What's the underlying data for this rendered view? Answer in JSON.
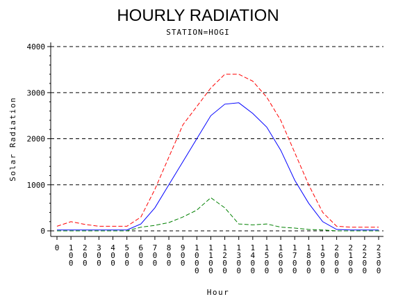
{
  "chart_data": {
    "type": "line",
    "title": "HOURLY RADIATION",
    "subtitle": "STATION=HOGI",
    "xlabel": "Hour",
    "ylabel": "Solar Radiation",
    "ylim": [
      0,
      4000
    ],
    "yticks": [
      0,
      1000,
      2000,
      3000,
      4000
    ],
    "ytick_labels": [
      "0",
      "1000",
      "2000",
      "3000",
      "4000"
    ],
    "grid": "horizontal-dashed",
    "x": [
      0,
      100,
      200,
      300,
      400,
      500,
      600,
      700,
      800,
      900,
      1000,
      1100,
      1200,
      1300,
      1400,
      1500,
      1600,
      1700,
      1800,
      1900,
      2000,
      2100,
      2200,
      2300
    ],
    "x_tick_labels": [
      "0",
      "100",
      "200",
      "300",
      "400",
      "500",
      "600",
      "700",
      "800",
      "900",
      "1000",
      "1100",
      "1200",
      "1300",
      "1400",
      "1500",
      "1600",
      "1700",
      "1800",
      "1900",
      "2000",
      "2100",
      "2200",
      "2300"
    ],
    "series": [
      {
        "color": "#ff0000",
        "style": "dashed",
        "values": [
          100,
          200,
          140,
          100,
          100,
          100,
          300,
          900,
          1600,
          2300,
          2700,
          3100,
          3400,
          3400,
          3250,
          2900,
          2400,
          1700,
          1000,
          400,
          100,
          80,
          80,
          80
        ]
      },
      {
        "color": "#0000ff",
        "style": "solid",
        "values": [
          20,
          20,
          20,
          20,
          20,
          20,
          150,
          500,
          1000,
          1500,
          2000,
          2500,
          2750,
          2780,
          2550,
          2250,
          1750,
          1100,
          600,
          200,
          30,
          20,
          20,
          20
        ]
      },
      {
        "color": "#008000",
        "style": "dashed",
        "values": [
          0,
          0,
          0,
          0,
          0,
          0,
          80,
          120,
          180,
          300,
          450,
          720,
          500,
          150,
          130,
          150,
          80,
          60,
          30,
          20,
          0,
          0,
          0,
          0
        ]
      }
    ]
  }
}
